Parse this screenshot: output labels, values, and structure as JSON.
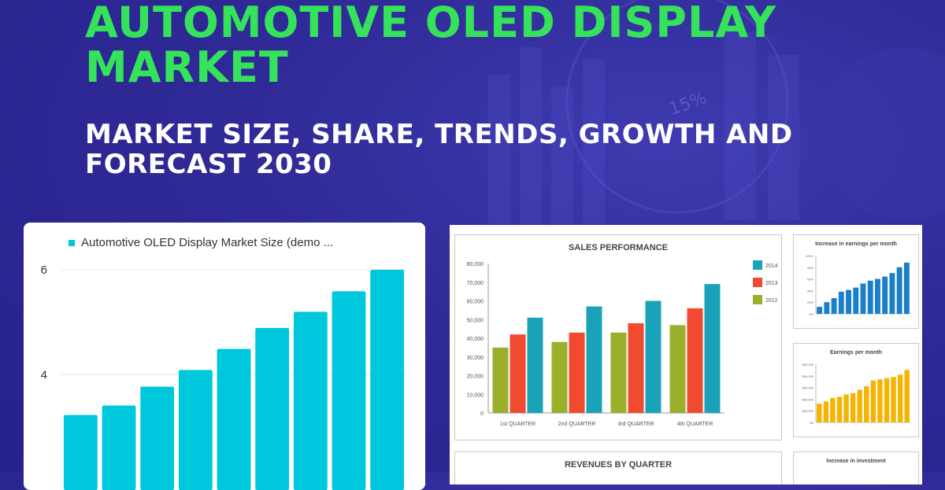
{
  "header": {
    "title": "AUTOMOTIVE OLED DISPLAY MARKET",
    "subtitle": "MARKET SIZE, SHARE, TRENDS, GROWTH AND FORECAST 2030"
  },
  "background": {
    "badge_text": "15%"
  },
  "colors": {
    "title": "#35e35a",
    "background": "#2f2a97",
    "bar": "#00c8dc",
    "olive": "#9aaf2a",
    "red": "#f04a30",
    "teal": "#1aa3b8",
    "blue": "#1a7fc8",
    "gold": "#f5b400"
  },
  "chart_data": [
    {
      "type": "bar",
      "legend": [
        "Automotive OLED Display Market Size (demo ..."
      ],
      "yticks": [
        "4",
        "6"
      ],
      "values": [
        3.23,
        3.41,
        3.77,
        4.09,
        4.49,
        4.89,
        5.2,
        5.59,
        6.0
      ],
      "ylim": [
        2.1,
        6.6
      ],
      "grid": true,
      "legend_position": "top"
    },
    {
      "type": "bar",
      "title": "SALES PERFORMANCE",
      "categories": [
        "1st QUARTER",
        "2nd QUARTER",
        "3rd QUARTER",
        "4th QUARTER"
      ],
      "yticks": [
        "0",
        "10,000",
        "20,000",
        "30,000",
        "40,000",
        "50,000",
        "60,000",
        "70,000",
        "80,000"
      ],
      "ylim": [
        0,
        80000
      ],
      "series": [
        {
          "name": "2012",
          "values": [
            35000,
            38000,
            43000,
            47000
          ]
        },
        {
          "name": "2013",
          "values": [
            42000,
            43000,
            48000,
            56000
          ]
        },
        {
          "name": "2014",
          "values": [
            51000,
            57000,
            60000,
            69000
          ]
        }
      ],
      "legend_position": "right"
    },
    {
      "type": "bar",
      "title": "Increase in earnings per month",
      "yticks": [
        "0%",
        "20%",
        "40%",
        "60%",
        "80%",
        "100%"
      ],
      "ylim": [
        0,
        100
      ],
      "values": [
        12,
        20,
        27,
        38,
        41,
        45,
        52,
        57,
        60,
        64,
        70,
        80,
        88
      ]
    },
    {
      "type": "bar",
      "title": "Earnings per month",
      "yticks": [
        "$0",
        "$10,000",
        "$20,000",
        "$30,000",
        "$40,000",
        "$50,000"
      ],
      "ylim": [
        0,
        50000
      ],
      "values": [
        16000,
        18000,
        21000,
        22000,
        24000,
        25000,
        28000,
        31000,
        36000,
        37000,
        38000,
        39000,
        41000,
        45000
      ]
    },
    {
      "type": "bar",
      "title": "REVENUES BY QUARTER"
    },
    {
      "type": "bar",
      "title": "Increase in investment"
    }
  ]
}
